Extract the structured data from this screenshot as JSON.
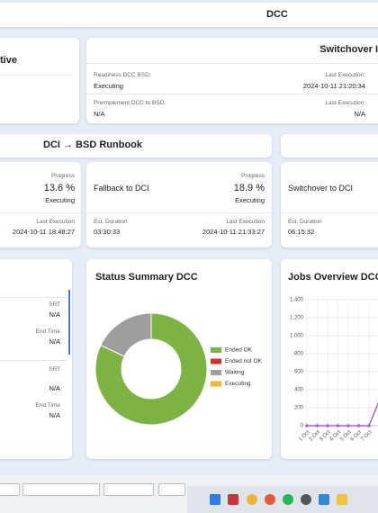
{
  "header": {
    "title": "DCC"
  },
  "status_card": {
    "title": "tive"
  },
  "switchover_card": {
    "title": "Switchover I",
    "fields": [
      {
        "label": "Readiness DCC BSD:",
        "value": "Executing"
      },
      {
        "label": "Last Execution:",
        "value": "2024-10-11 21:20:34"
      },
      {
        "label": "Preimplement DCC to BSD:",
        "value": "N/A"
      },
      {
        "label": "Last Execution:",
        "value": "N/A"
      }
    ]
  },
  "runbook": {
    "title": "DCI → BSD Runbook",
    "steps": [
      {
        "progress_label": "Progress",
        "progress": "13.6 %",
        "state": "Executing",
        "last_label": "Last Execution",
        "last": "2024-10-11 18:48:27"
      },
      {
        "name": "Fallback to DCI",
        "progress_label": "Progress",
        "progress": "18.9 %",
        "state": "Executing",
        "duration_label": "Est. Duration",
        "duration": "03:30:33",
        "last_label": "Last Execution",
        "last": "2024-10-11 21:33:27"
      },
      {
        "name": "Switchover to DCI",
        "duration_label": "Est. Duration",
        "duration": "06:15:32"
      }
    ]
  },
  "jobs_list": [
    {
      "srt_label": "SRT",
      "srt": "N/A",
      "end_label": "End Time",
      "end": "N/A"
    },
    {
      "srt_label": "SRT",
      "srt": "N/A",
      "end_label": "End Time",
      "end": "N/A"
    }
  ],
  "status_summary": {
    "type": "pie",
    "title": "Status Summary DCC",
    "categories": [
      "Ended OK",
      "Ended not OK",
      "Waiting",
      "Executing"
    ],
    "values": [
      82,
      0,
      18,
      0
    ],
    "colors": [
      "#7cb342",
      "#d32f2f",
      "#9e9e9e",
      "#f4b733"
    ]
  },
  "jobs_overview": {
    "type": "line",
    "title": "Jobs Overview DCC",
    "categories": [
      "1 Oct",
      "2 Oct",
      "3 Oct",
      "4 Oct",
      "5 Oct",
      "6 Oct",
      "7 Oct",
      null
    ],
    "values": [
      0,
      0,
      0,
      0,
      0,
      0,
      0,
      280
    ],
    "color": "#a461d8",
    "ylim": [
      0,
      1400
    ],
    "yticks": [
      0,
      200,
      400,
      600,
      800,
      {
        "value": 1000,
        "label": "1,000"
      },
      {
        "value": 1200,
        "label": "1,200"
      },
      {
        "value": 1400,
        "label": "1,400"
      }
    ],
    "grid": true
  }
}
